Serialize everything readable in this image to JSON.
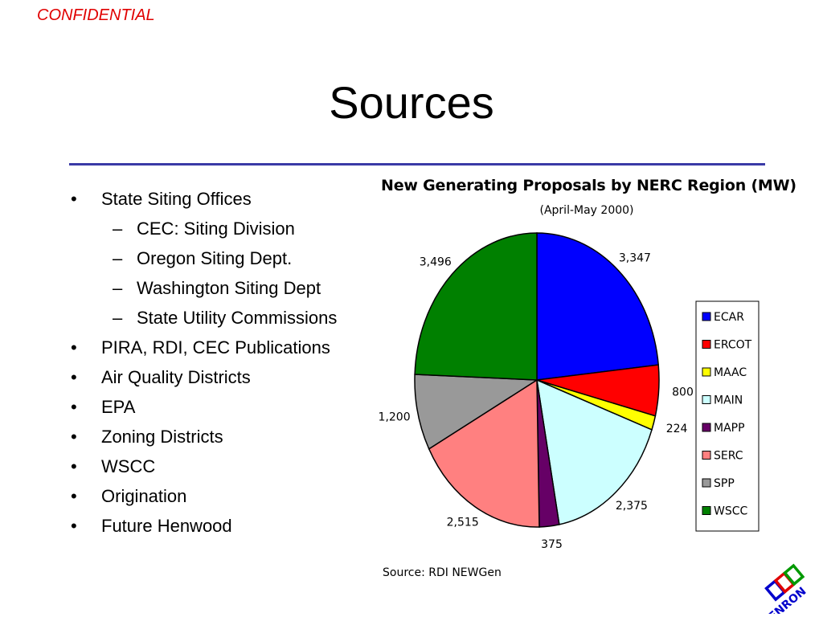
{
  "header": {
    "confidential": "CONFIDENTIAL"
  },
  "slide": {
    "title": "Sources"
  },
  "bullets": [
    {
      "level": 1,
      "marker": "•",
      "text": "State Siting Offices"
    },
    {
      "level": 2,
      "marker": "–",
      "text": "CEC: Siting Division"
    },
    {
      "level": 2,
      "marker": "–",
      "text": "Oregon Siting Dept."
    },
    {
      "level": 2,
      "marker": "–",
      "text": "Washington Siting Dept"
    },
    {
      "level": 2,
      "marker": "–",
      "text": "State Utility Commissions"
    },
    {
      "level": 1,
      "marker": "•",
      "text": "PIRA, RDI, CEC Publications"
    },
    {
      "level": 1,
      "marker": "•",
      "text": "Air Quality Districts"
    },
    {
      "level": 1,
      "marker": "•",
      "text": "EPA"
    },
    {
      "level": 1,
      "marker": "•",
      "text": "Zoning Districts"
    },
    {
      "level": 1,
      "marker": "•",
      "text": "WSCC"
    },
    {
      "level": 1,
      "marker": "•",
      "text": "Origination"
    },
    {
      "level": 1,
      "marker": "•",
      "text": "Future Henwood"
    }
  ],
  "chart_data": {
    "type": "pie",
    "title": "New Generating Proposals by NERC Region (MW)",
    "subtitle": "(April-May 2000)",
    "source": "Source: RDI NEWGen",
    "legend_position": "right",
    "slices": [
      {
        "label": "ECAR",
        "value": 3347,
        "value_label": "3,347",
        "color": "#0000ff"
      },
      {
        "label": "ERCOT",
        "value": 800,
        "value_label": "800",
        "color": "#ff0000"
      },
      {
        "label": "MAAC",
        "value": 224,
        "value_label": "224",
        "color": "#ffff00"
      },
      {
        "label": "MAIN",
        "value": 2375,
        "value_label": "2,375",
        "color": "#ccffff"
      },
      {
        "label": "MAPP",
        "value": 375,
        "value_label": "375",
        "color": "#660066"
      },
      {
        "label": "SERC",
        "value": 2515,
        "value_label": "2,515",
        "color": "#ff8080"
      },
      {
        "label": "SPP",
        "value": 1200,
        "value_label": "1,200",
        "color": "#999999"
      },
      {
        "label": "WSCC",
        "value": 3496,
        "value_label": "3,496",
        "color": "#008000"
      }
    ]
  },
  "logo": {
    "text": "ENRON",
    "colors": [
      "#0000cc",
      "#e00000",
      "#009900",
      "#ffcc00"
    ]
  }
}
